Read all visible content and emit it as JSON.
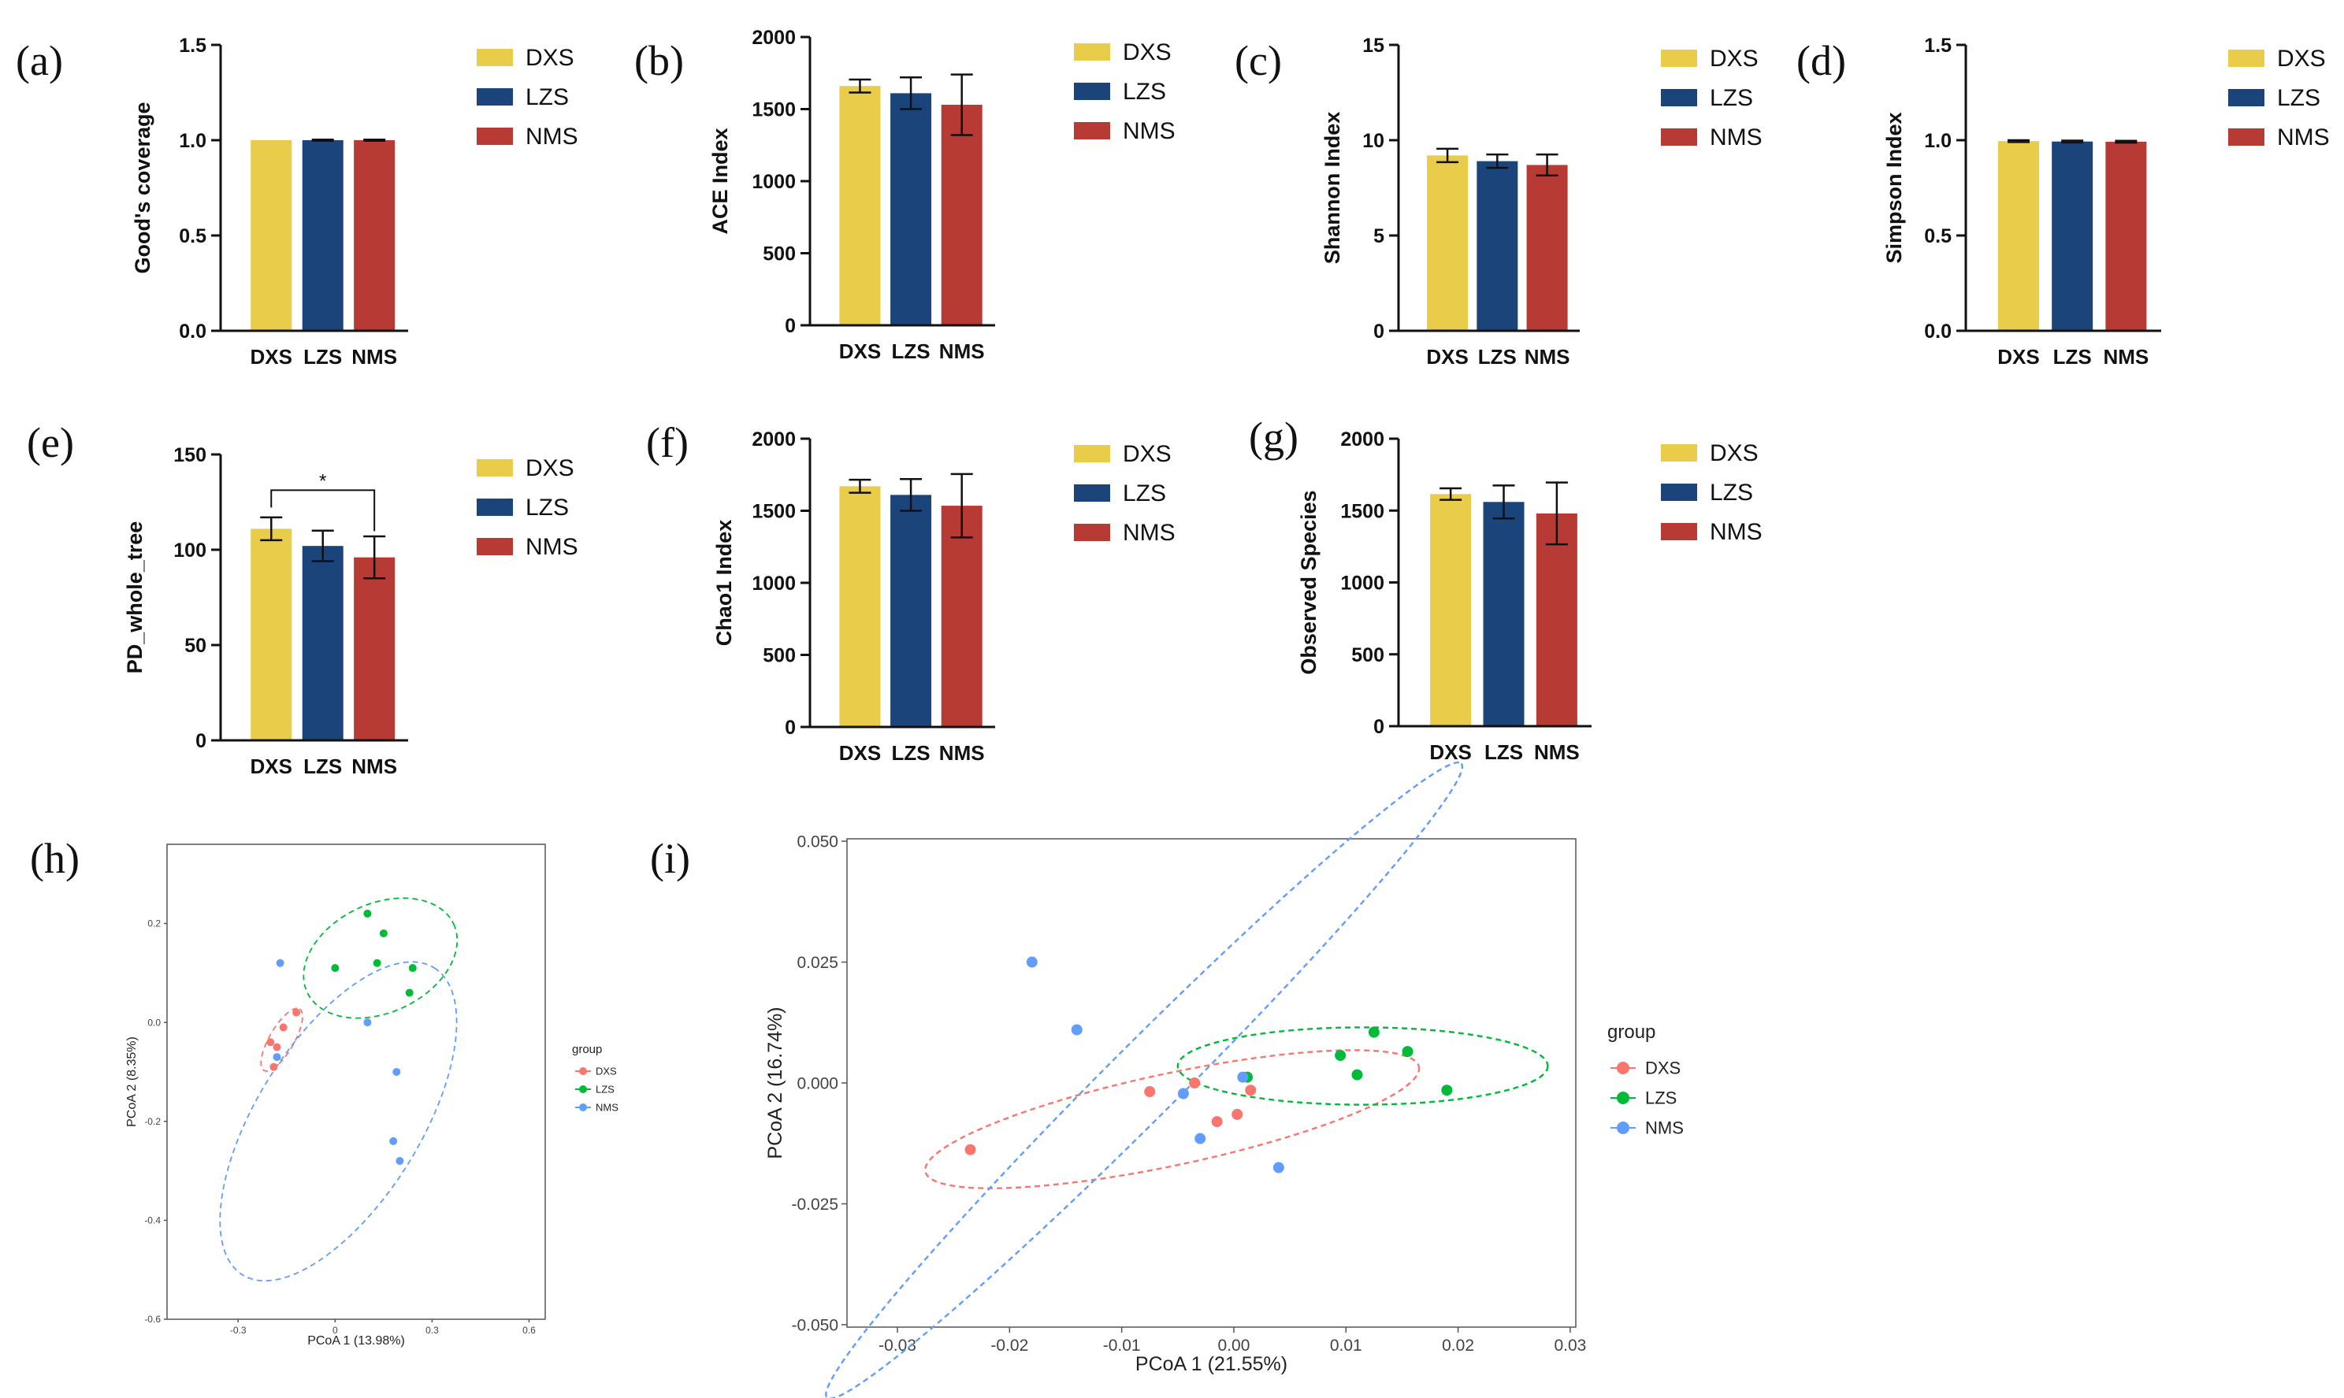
{
  "colors": {
    "DXS": "#e8cc4a",
    "LZS": "#1b457a",
    "NMS": "#b73b34",
    "pcoa_DXS": "#f8766d",
    "pcoa_LZS": "#00ba38",
    "pcoa_NMS": "#619cff"
  },
  "chart_data": [
    {
      "id": "a",
      "panel_label": "(a)",
      "type": "bar",
      "ylabel": "Good's coverage",
      "ylim": [
        0,
        1.5
      ],
      "yticks": [
        0.0,
        0.5,
        1.0,
        1.5
      ],
      "ytick_labels": [
        "0.0",
        "0.5",
        "1.0",
        "1.5"
      ],
      "categories": [
        "DXS",
        "LZS",
        "NMS"
      ],
      "values": [
        1.0,
        1.0,
        1.0
      ],
      "errors": [
        0,
        0.003,
        0.003
      ],
      "legend": [
        "DXS",
        "LZS",
        "NMS"
      ]
    },
    {
      "id": "b",
      "panel_label": "(b)",
      "type": "bar",
      "ylabel": "ACE Index",
      "ylim": [
        0,
        2000
      ],
      "yticks": [
        0,
        500,
        1000,
        1500,
        2000
      ],
      "ytick_labels": [
        "0",
        "500",
        "1000",
        "1500",
        "2000"
      ],
      "categories": [
        "DXS",
        "LZS",
        "NMS"
      ],
      "values": [
        1660,
        1610,
        1530
      ],
      "errors": [
        45,
        110,
        210
      ],
      "legend": [
        "DXS",
        "LZS",
        "NMS"
      ]
    },
    {
      "id": "c",
      "panel_label": "(c)",
      "type": "bar",
      "ylabel": "Shannon Index",
      "ylim": [
        0,
        15
      ],
      "yticks": [
        0,
        5,
        10,
        15
      ],
      "ytick_labels": [
        "0",
        "5",
        "10",
        "15"
      ],
      "categories": [
        "DXS",
        "LZS",
        "NMS"
      ],
      "values": [
        9.2,
        8.9,
        8.7
      ],
      "errors": [
        0.35,
        0.35,
        0.55
      ],
      "legend": [
        "DXS",
        "LZS",
        "NMS"
      ]
    },
    {
      "id": "d",
      "panel_label": "(d)",
      "type": "bar",
      "ylabel": "Simpson Index",
      "ylim": [
        0,
        1.5
      ],
      "yticks": [
        0.0,
        0.5,
        1.0,
        1.5
      ],
      "ytick_labels": [
        "0.0",
        "0.5",
        "1.0",
        "1.5"
      ],
      "categories": [
        "DXS",
        "LZS",
        "NMS"
      ],
      "values": [
        0.995,
        0.993,
        0.992
      ],
      "errors": [
        0.005,
        0.005,
        0.005
      ],
      "legend": [
        "DXS",
        "LZS",
        "NMS"
      ]
    },
    {
      "id": "e",
      "panel_label": "(e)",
      "type": "bar",
      "ylabel": "PD_whole_tree",
      "ylim": [
        0,
        150
      ],
      "yticks": [
        0,
        50,
        100,
        150
      ],
      "ytick_labels": [
        "0",
        "50",
        "100",
        "150"
      ],
      "categories": [
        "DXS",
        "LZS",
        "NMS"
      ],
      "values": [
        111,
        102,
        96
      ],
      "errors": [
        6,
        8,
        11
      ],
      "significance": {
        "from": "DXS",
        "to": "NMS",
        "label": "*"
      },
      "legend": [
        "DXS",
        "LZS",
        "NMS"
      ]
    },
    {
      "id": "f",
      "panel_label": "(f)",
      "type": "bar",
      "ylabel": "Chao1 Index",
      "ylim": [
        0,
        2000
      ],
      "yticks": [
        0,
        500,
        1000,
        1500,
        2000
      ],
      "ytick_labels": [
        "0",
        "500",
        "1000",
        "1500",
        "2000"
      ],
      "categories": [
        "DXS",
        "LZS",
        "NMS"
      ],
      "values": [
        1670,
        1610,
        1535
      ],
      "errors": [
        45,
        110,
        220
      ],
      "legend": [
        "DXS",
        "LZS",
        "NMS"
      ]
    },
    {
      "id": "g",
      "panel_label": "(g)",
      "type": "bar",
      "ylabel": "Observed Species",
      "ylim": [
        0,
        2000
      ],
      "yticks": [
        0,
        500,
        1000,
        1500,
        2000
      ],
      "ytick_labels": [
        "0",
        "500",
        "1000",
        "1500",
        "2000"
      ],
      "categories": [
        "DXS",
        "LZS",
        "NMS"
      ],
      "values": [
        1615,
        1560,
        1480
      ],
      "errors": [
        40,
        115,
        215
      ],
      "legend": [
        "DXS",
        "LZS",
        "NMS"
      ]
    },
    {
      "id": "h",
      "panel_label": "(h)",
      "type": "scatter",
      "xlabel": "PCoA 1 (13.98%)",
      "ylabel": "PCoA 2 (8.35%)",
      "xlim": [
        -0.52,
        0.65
      ],
      "ylim": [
        -0.6,
        0.36
      ],
      "xticks": [
        -0.3,
        0,
        0.3,
        0.6
      ],
      "xtick_labels": [
        "-0.3",
        "0",
        "0.3",
        "0.6"
      ],
      "yticks": [
        0.2,
        0.0,
        -0.2,
        -0.4,
        -0.6
      ],
      "ytick_labels": [
        "0.2",
        "0.0",
        "-0.2",
        "-0.4",
        "-0.6"
      ],
      "legend_title": "group",
      "legend": [
        "DXS",
        "LZS",
        "NMS"
      ],
      "series": [
        {
          "name": "DXS",
          "points": [
            [
              -0.12,
              0.02
            ],
            [
              -0.16,
              -0.01
            ],
            [
              -0.2,
              -0.04
            ],
            [
              -0.18,
              -0.05
            ],
            [
              -0.19,
              -0.09
            ]
          ]
        },
        {
          "name": "LZS",
          "points": [
            [
              0.1,
              0.22
            ],
            [
              0.15,
              0.18
            ],
            [
              0.0,
              0.11
            ],
            [
              0.13,
              0.12
            ],
            [
              0.24,
              0.11
            ],
            [
              0.23,
              0.06
            ]
          ]
        },
        {
          "name": "NMS",
          "points": [
            [
              -0.17,
              0.12
            ],
            [
              0.1,
              0.0
            ],
            [
              -0.18,
              -0.07
            ],
            [
              0.19,
              -0.1
            ],
            [
              0.18,
              -0.24
            ],
            [
              0.2,
              -0.28
            ]
          ]
        }
      ],
      "ellipses": [
        {
          "name": "DXS",
          "cx": -0.165,
          "cy": -0.035,
          "rx": 0.11,
          "ry": 0.025,
          "angle_deg": -60
        },
        {
          "name": "LZS",
          "cx": 0.14,
          "cy": 0.13,
          "rx": 0.25,
          "ry": 0.11,
          "angle_deg": -25
        },
        {
          "name": "NMS",
          "cx": 0.01,
          "cy": -0.2,
          "rx": 0.56,
          "ry": 0.165,
          "angle_deg": -58
        }
      ]
    },
    {
      "id": "i",
      "panel_label": "(i)",
      "type": "scatter",
      "xlabel": "PCoA 1 (21.55%)",
      "ylabel": "PCoA 2 (16.74%)",
      "xlim": [
        -0.0345,
        0.0305
      ],
      "ylim": [
        -0.0505,
        0.0505
      ],
      "xticks": [
        -0.03,
        -0.02,
        -0.01,
        0.0,
        0.01,
        0.02,
        0.03
      ],
      "xtick_labels": [
        "-0.03",
        "-0.02",
        "-0.01",
        "0.00",
        "0.01",
        "0.02",
        "0.03"
      ],
      "yticks": [
        0.05,
        0.025,
        0.0,
        -0.025,
        -0.05
      ],
      "ytick_labels": [
        "0.050",
        "0.025",
        "0.000",
        "-0.025",
        "-0.050"
      ],
      "legend_title": "group",
      "legend": [
        "DXS",
        "LZS",
        "NMS"
      ],
      "series": [
        {
          "name": "DXS",
          "points": [
            [
              -0.0235,
              -0.0138
            ],
            [
              -0.0075,
              -0.0018
            ],
            [
              -0.0035,
              0.0
            ],
            [
              -0.0015,
              -0.008
            ],
            [
              0.0003,
              -0.0065
            ],
            [
              0.0015,
              -0.0015
            ]
          ]
        },
        {
          "name": "LZS",
          "points": [
            [
              0.0095,
              0.0057
            ],
            [
              0.0125,
              0.0105
            ],
            [
              0.011,
              0.0017
            ],
            [
              0.0155,
              0.0065
            ],
            [
              0.019,
              -0.0015
            ],
            [
              0.0012,
              0.0012
            ]
          ]
        },
        {
          "name": "NMS",
          "points": [
            [
              -0.018,
              0.025
            ],
            [
              -0.014,
              0.011
            ],
            [
              -0.0045,
              -0.0022
            ],
            [
              -0.003,
              -0.0115
            ],
            [
              0.0008,
              0.0012
            ],
            [
              0.004,
              -0.0175
            ]
          ]
        }
      ],
      "ellipses": [
        {
          "name": "DXS",
          "cx": -0.0055,
          "cy": -0.0075,
          "rx": 0.0225,
          "ry": 0.0095,
          "angle_deg": -12
        },
        {
          "name": "LZS",
          "cx": 0.0115,
          "cy": 0.0035,
          "rx": 0.0165,
          "ry": 0.008,
          "angle_deg": 0
        },
        {
          "name": "NMS",
          "cx": -0.008,
          "cy": 0.0005,
          "rx": 0.04,
          "ry": 0.0075,
          "angle_deg": -45
        }
      ]
    }
  ]
}
